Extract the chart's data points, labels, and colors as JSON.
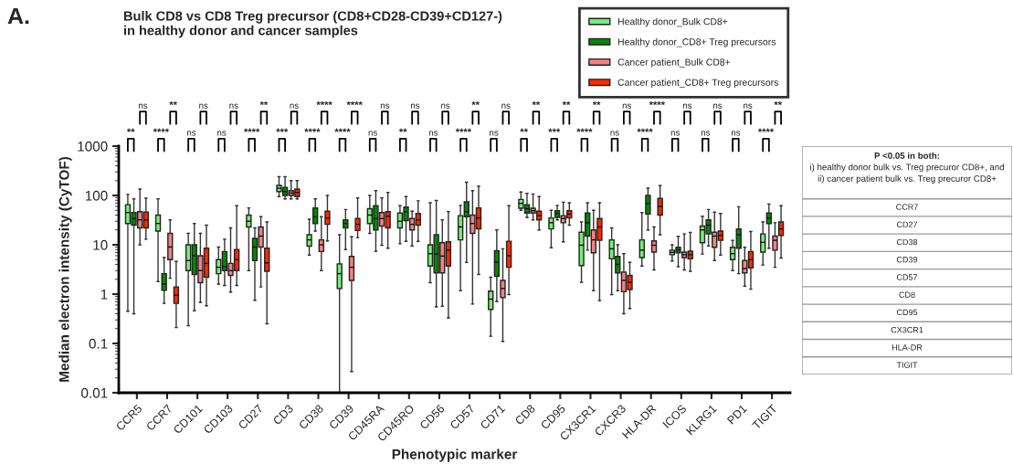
{
  "chart_data": [
    {
      "type": "box",
      "title": "Bulk CD8 vs CD8 Treg precursor (CD8+CD28-CD39+CD127-)\nin healthy donor and cancer samples",
      "xlabel": "Phenotypic marker",
      "ylabel": "Median electron intensity (CyTOF)",
      "log": "y",
      "ylim": [
        0.01,
        1000
      ],
      "yticks": [
        0.01,
        0.1,
        1,
        10,
        100,
        1000
      ],
      "grid": false,
      "legend": "top right",
      "categories": [
        "CCR5",
        "CCR7",
        "CD101",
        "CD103",
        "CD27",
        "CD3",
        "CD38",
        "CD39",
        "CD45RA",
        "CD45RO",
        "CD56",
        "CD57",
        "CD71",
        "CD8",
        "CD95",
        "CX3CR1",
        "CXCR3",
        "HLA-DR",
        "ICOS",
        "KLRG1",
        "PD1",
        "TIGIT"
      ],
      "annotations": [
        "A.",
        "**",
        "ns",
        "****",
        "**",
        "ns",
        "ns",
        "ns",
        "ns",
        "****",
        "**",
        "***",
        "ns",
        "****",
        "****",
        "****",
        "****",
        "ns",
        "ns",
        "**",
        "ns",
        "ns",
        "ns",
        "****",
        "**",
        "ns",
        "ns",
        "**",
        "**",
        "***",
        "**",
        "****",
        "**",
        "ns",
        "ns",
        "****",
        "****",
        "ns",
        "ns",
        "ns",
        "ns",
        "ns",
        "ns",
        "****",
        "**"
      ],
      "series": [
        {
          "name": "Healthy donor_Bulk CD8+",
          "color": "#77ee77",
          "boxes": [
            {
              "low": 0.45,
              "q1": 27,
              "median": 45,
              "q3": 65,
              "high": 105
            },
            {
              "low": 1.8,
              "q1": 19,
              "median": 27,
              "q3": 40,
              "high": 85
            },
            {
              "low": 0.23,
              "q1": 3,
              "median": 4.8,
              "q3": 10,
              "high": 17
            },
            {
              "low": 1.6,
              "q1": 2.6,
              "median": 3.5,
              "q3": 5,
              "high": 9
            },
            {
              "low": 3,
              "q1": 23,
              "median": 30,
              "q3": 40,
              "high": 56
            },
            {
              "low": 95,
              "q1": 120,
              "median": 140,
              "q3": 160,
              "high": 240
            },
            {
              "low": 6.2,
              "q1": 9.4,
              "median": 12.6,
              "q3": 16,
              "high": 33
            },
            {
              "low": 0.01,
              "q1": 1.3,
              "median": 2.6,
              "q3": 4.1,
              "high": 16
            },
            {
              "low": 17,
              "q1": 27,
              "median": 40,
              "q3": 54,
              "high": 100
            },
            {
              "low": 10.5,
              "q1": 22,
              "median": 30,
              "q3": 44,
              "high": 62
            },
            {
              "low": 1.7,
              "q1": 3.7,
              "median": 6.6,
              "q3": 10,
              "high": 71
            },
            {
              "low": 1.17,
              "q1": 12.6,
              "median": 23,
              "q3": 39,
              "high": 63
            },
            {
              "low": 0.14,
              "q1": 0.49,
              "median": 0.79,
              "q3": 1.15,
              "high": 2.2
            },
            {
              "low": 50,
              "q1": 55,
              "median": 69,
              "q3": 83,
              "high": 117
            },
            {
              "low": 8.7,
              "q1": 21,
              "median": 28,
              "q3": 35,
              "high": 50
            },
            {
              "low": 1.74,
              "q1": 3.8,
              "median": 9.8,
              "q3": 18,
              "high": 29
            },
            {
              "low": 0.98,
              "q1": 5.2,
              "median": 8.3,
              "q3": 12.6,
              "high": 22
            },
            {
              "low": 3.7,
              "q1": 5.5,
              "median": 7.8,
              "q3": 12.6,
              "high": 45
            },
            {
              "low": 4.7,
              "q1": 6.3,
              "median": 7,
              "q3": 7.8,
              "high": 10
            },
            {
              "low": 6.5,
              "q1": 11,
              "median": 20,
              "q3": 24,
              "high": 38
            },
            {
              "low": 3,
              "q1": 5,
              "median": 6.6,
              "q3": 8.9,
              "high": 12.3
            },
            {
              "low": 3.9,
              "q1": 7.1,
              "median": 11.2,
              "q3": 16.6,
              "high": 29
            }
          ]
        },
        {
          "name": "Healthy donor_CD8+ Treg precursors",
          "color": "#008a00",
          "boxes": [
            {
              "low": 0.4,
              "q1": 25,
              "median": 34,
              "q3": 45,
              "high": 85
            },
            {
              "low": 0.65,
              "q1": 1.2,
              "median": 1.6,
              "q3": 2.6,
              "high": 5.5
            },
            {
              "low": 0.46,
              "q1": 2.5,
              "median": 6,
              "q3": 10,
              "high": 27
            },
            {
              "low": 1.5,
              "q1": 3,
              "median": 3.6,
              "q3": 7.3,
              "high": 13
            },
            {
              "low": 0.75,
              "q1": 4.8,
              "median": 9,
              "q3": 13.5,
              "high": 22
            },
            {
              "low": 85,
              "q1": 100,
              "median": 120,
              "q3": 145,
              "high": 240
            },
            {
              "low": 19,
              "q1": 27,
              "median": 37,
              "q3": 56,
              "high": 85
            },
            {
              "low": 8,
              "q1": 22,
              "median": 27,
              "q3": 32,
              "high": 52
            },
            {
              "low": 7.4,
              "q1": 20,
              "median": 34,
              "q3": 62,
              "high": 125
            },
            {
              "low": 11.7,
              "q1": 31,
              "median": 47,
              "q3": 58,
              "high": 95
            },
            {
              "low": 0.55,
              "q1": 2.7,
              "median": 6.5,
              "q3": 16,
              "high": 79
            },
            {
              "low": 4.4,
              "q1": 37,
              "median": 47,
              "q3": 74,
              "high": 186
            },
            {
              "low": 0.71,
              "q1": 2.3,
              "median": 4.4,
              "q3": 7.6,
              "high": 20
            },
            {
              "low": 36,
              "q1": 44,
              "median": 54,
              "q3": 65,
              "high": 110
            },
            {
              "low": 32,
              "q1": 36,
              "median": 43,
              "q3": 49,
              "high": 63
            },
            {
              "low": 7.8,
              "q1": 15,
              "median": 28,
              "q3": 44,
              "high": 71
            },
            {
              "low": 1.17,
              "q1": 2.7,
              "median": 4,
              "q3": 5.8,
              "high": 10
            },
            {
              "low": 20,
              "q1": 42,
              "median": 69,
              "q3": 100,
              "high": 141
            },
            {
              "low": 3.6,
              "q1": 6.9,
              "median": 7.9,
              "q3": 8.9,
              "high": 14.8
            },
            {
              "low": 9.5,
              "q1": 16.6,
              "median": 25,
              "q3": 32,
              "high": 52
            },
            {
              "low": 2.6,
              "q1": 8.5,
              "median": 16,
              "q3": 21,
              "high": 59
            },
            {
              "low": 8.5,
              "q1": 27,
              "median": 35,
              "q3": 44,
              "high": 67
            }
          ]
        },
        {
          "name": "Cancer patient_Bulk CD8+",
          "color": "#f48282",
          "boxes": [
            {
              "low": 10,
              "q1": 22,
              "median": 32,
              "q3": 47,
              "high": 135
            },
            {
              "low": 2.1,
              "q1": 5,
              "median": 9,
              "q3": 17,
              "high": 32
            },
            {
              "low": 0.68,
              "q1": 1.7,
              "median": 3,
              "q3": 6,
              "high": 17
            },
            {
              "low": 1.1,
              "q1": 2.4,
              "median": 3,
              "q3": 4.2,
              "high": 22
            },
            {
              "low": 1.4,
              "q1": 9,
              "median": 15,
              "q3": 23,
              "high": 37
            },
            {
              "low": 85,
              "q1": 100,
              "median": 112,
              "q3": 125,
              "high": 200
            },
            {
              "low": 3,
              "q1": 7.3,
              "median": 10,
              "q3": 12.6,
              "high": 37
            },
            {
              "low": 0.027,
              "q1": 1.9,
              "median": 3.5,
              "q3": 5.8,
              "high": 14.5
            },
            {
              "low": 9.8,
              "q1": 24,
              "median": 34,
              "q3": 45,
              "high": 89
            },
            {
              "low": 9.5,
              "q1": 20,
              "median": 26,
              "q3": 34,
              "high": 48
            },
            {
              "low": 0.57,
              "q1": 2.7,
              "median": 5.9,
              "q3": 11,
              "high": 32
            },
            {
              "low": 0.63,
              "q1": 17,
              "median": 27,
              "q3": 40,
              "high": 125
            },
            {
              "low": 0.11,
              "q1": 0.85,
              "median": 1.3,
              "q3": 1.9,
              "high": 8.3
            },
            {
              "low": 32,
              "q1": 44,
              "median": 49,
              "q3": 55,
              "high": 107
            },
            {
              "low": 11.5,
              "q1": 28,
              "median": 34,
              "q3": 39,
              "high": 73
            },
            {
              "low": 1.17,
              "q1": 6.9,
              "median": 12.6,
              "q3": 20,
              "high": 50
            },
            {
              "low": 0.4,
              "q1": 1.12,
              "median": 1.9,
              "q3": 2.8,
              "high": 6.6
            },
            {
              "low": 3.1,
              "q1": 7.1,
              "median": 9.8,
              "q3": 12,
              "high": 23
            },
            {
              "low": 3.1,
              "q1": 5.5,
              "median": 6.3,
              "q3": 7.1,
              "high": 16.6
            },
            {
              "low": 4.8,
              "q1": 8.9,
              "median": 15,
              "q3": 18,
              "high": 46
            },
            {
              "low": 1.45,
              "q1": 2.7,
              "median": 3.3,
              "q3": 4.8,
              "high": 8.9
            },
            {
              "low": 3.5,
              "q1": 7.8,
              "median": 12.3,
              "q3": 15,
              "high": 28
            }
          ]
        },
        {
          "name": "Cancer patient_CD8+ Treg precursors",
          "color": "#ff2a00",
          "boxes": [
            {
              "low": 13,
              "q1": 22,
              "median": 32,
              "q3": 46,
              "high": 88
            },
            {
              "low": 0.21,
              "q1": 0.65,
              "median": 0.95,
              "q3": 1.4,
              "high": 4.6
            },
            {
              "low": 0.58,
              "q1": 2.2,
              "median": 4.2,
              "q3": 8.5,
              "high": 25
            },
            {
              "low": 1.5,
              "q1": 3,
              "median": 5,
              "q3": 8,
              "high": 62
            },
            {
              "low": 0.25,
              "q1": 2.9,
              "median": 4.3,
              "q3": 8.5,
              "high": 29
            },
            {
              "low": 85,
              "q1": 95,
              "median": 115,
              "q3": 135,
              "high": 200
            },
            {
              "low": 12,
              "q1": 26,
              "median": 35,
              "q3": 48,
              "high": 100
            },
            {
              "low": 14,
              "q1": 19.5,
              "median": 26,
              "q3": 34,
              "high": 89
            },
            {
              "low": 8.5,
              "q1": 22,
              "median": 38,
              "q3": 47,
              "high": 115
            },
            {
              "low": 11.7,
              "q1": 25,
              "median": 32,
              "q3": 43,
              "high": 78
            },
            {
              "low": 0.33,
              "q1": 3.7,
              "median": 7.8,
              "q3": 11.5,
              "high": 47
            },
            {
              "low": 2.5,
              "q1": 21,
              "median": 35,
              "q3": 56,
              "high": 155
            },
            {
              "low": 0.98,
              "q1": 3.5,
              "median": 6,
              "q3": 11.8,
              "high": 62
            },
            {
              "low": 20,
              "q1": 32,
              "median": 39,
              "q3": 48,
              "high": 95
            },
            {
              "low": 25,
              "q1": 35,
              "median": 42,
              "q3": 49,
              "high": 71
            },
            {
              "low": 0.74,
              "q1": 12.3,
              "median": 23,
              "q3": 34,
              "high": 71
            },
            {
              "low": 0.51,
              "q1": 1.23,
              "median": 1.74,
              "q3": 2.4,
              "high": 4.4
            },
            {
              "low": 16,
              "q1": 40,
              "median": 60,
              "q3": 87,
              "high": 158
            },
            {
              "low": 2.9,
              "q1": 5.2,
              "median": 6.3,
              "q3": 7.4,
              "high": 17.8
            },
            {
              "low": 6.2,
              "q1": 12.3,
              "median": 15.5,
              "q3": 19,
              "high": 43
            },
            {
              "low": 1.26,
              "q1": 3.4,
              "median": 5,
              "q3": 7.3,
              "high": 18.6
            },
            {
              "low": 5.4,
              "q1": 15.5,
              "median": 21,
              "q3": 29,
              "high": 62
            }
          ]
        }
      ]
    },
    {
      "type": "other",
      "title": "P <0.05 in both:",
      "subtitle": "i) healthy donor bulk vs. Treg precuror CD8+, and\nii) cancer patient bulk vs. Treg precuror CD8+",
      "annotations": [
        "CCR7",
        "CD27",
        "CD38",
        "CD39",
        "CD57",
        "CD8",
        "CD95",
        "CX3CR1",
        "HLA-DR",
        "TIGIT"
      ]
    }
  ]
}
